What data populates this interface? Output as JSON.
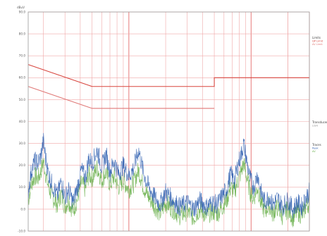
{
  "chart_data": {
    "type": "line",
    "title": "",
    "y_unit_label": "dBuV",
    "y_tick_labels": [
      "90.0",
      "80.0",
      "70.0",
      "60.0",
      "50.0",
      "40.0",
      "30.0",
      "20.0",
      "10.0",
      "0.0",
      "-10.0"
    ],
    "ylim": [
      -10,
      90
    ],
    "x_scale": "log",
    "xlim": [
      0.15,
      30
    ],
    "grid": true,
    "legend_placement": "right",
    "legend_groups": [
      {
        "title": "Limits",
        "items": [
          "QP Limit",
          "AV Limit"
        ],
        "colors": [
          "#d8463f",
          "#e07a78"
        ]
      },
      {
        "title": "Transducer",
        "items": [
          "LISN"
        ],
        "colors": [
          "#999999"
        ]
      },
      {
        "title": "Traces",
        "items": [
          "Peak",
          "AV"
        ],
        "colors": [
          "#2f5fb0",
          "#6ab04c"
        ]
      }
    ],
    "limit_lines": [
      {
        "name": "QP Limit",
        "color": "#d8463f",
        "points": [
          [
            0.15,
            66
          ],
          [
            0.5,
            56
          ],
          [
            5,
            56
          ],
          [
            5,
            60
          ],
          [
            30,
            60
          ]
        ]
      },
      {
        "name": "AV Limit",
        "color": "#e07a78",
        "points": [
          [
            0.15,
            56
          ],
          [
            0.5,
            46
          ],
          [
            5,
            46
          ]
        ]
      }
    ],
    "series": [
      {
        "name": "Peak",
        "color": "#2f5fb0",
        "points": [
          [
            0.15,
            8
          ],
          [
            0.16,
            18
          ],
          [
            0.17,
            22
          ],
          [
            0.18,
            21
          ],
          [
            0.19,
            24
          ],
          [
            0.2,
            31
          ],
          [
            0.21,
            22
          ],
          [
            0.22,
            16
          ],
          [
            0.24,
            10
          ],
          [
            0.26,
            6
          ],
          [
            0.28,
            13
          ],
          [
            0.3,
            5
          ],
          [
            0.32,
            9
          ],
          [
            0.35,
            3
          ],
          [
            0.38,
            10
          ],
          [
            0.41,
            18
          ],
          [
            0.44,
            14
          ],
          [
            0.47,
            23
          ],
          [
            0.5,
            21
          ],
          [
            0.55,
            27
          ],
          [
            0.6,
            19
          ],
          [
            0.65,
            25
          ],
          [
            0.7,
            17
          ],
          [
            0.76,
            22
          ],
          [
            0.82,
            16
          ],
          [
            0.9,
            20
          ],
          [
            1.0,
            15
          ],
          [
            1.1,
            19
          ],
          [
            1.2,
            27
          ],
          [
            1.3,
            18
          ],
          [
            1.4,
            12
          ],
          [
            1.6,
            6
          ],
          [
            1.8,
            2
          ],
          [
            2.0,
            8
          ],
          [
            2.3,
            4
          ],
          [
            2.6,
            1
          ],
          [
            3.0,
            3
          ],
          [
            3.4,
            0
          ],
          [
            3.8,
            4
          ],
          [
            4.3,
            1
          ],
          [
            4.8,
            3
          ],
          [
            5.3,
            2
          ],
          [
            5.8,
            6
          ],
          [
            6.3,
            9
          ],
          [
            6.8,
            16
          ],
          [
            7.3,
            13
          ],
          [
            7.8,
            20
          ],
          [
            8.3,
            25
          ],
          [
            8.7,
            30
          ],
          [
            9.2,
            22
          ],
          [
            9.8,
            14
          ],
          [
            10.5,
            10
          ],
          [
            11.3,
            16
          ],
          [
            12.0,
            8
          ],
          [
            13.0,
            3
          ],
          [
            14.0,
            6
          ],
          [
            15.0,
            2
          ],
          [
            16.5,
            5
          ],
          [
            18.0,
            1
          ],
          [
            20.0,
            4
          ],
          [
            22.0,
            0
          ],
          [
            24.0,
            3
          ],
          [
            26.0,
            1
          ],
          [
            28.0,
            5
          ],
          [
            30.0,
            8
          ]
        ]
      },
      {
        "name": "AV",
        "color": "#6ab04c",
        "points": [
          [
            0.15,
            4
          ],
          [
            0.16,
            12
          ],
          [
            0.17,
            15
          ],
          [
            0.18,
            14
          ],
          [
            0.19,
            17
          ],
          [
            0.2,
            22
          ],
          [
            0.21,
            15
          ],
          [
            0.22,
            10
          ],
          [
            0.24,
            5
          ],
          [
            0.26,
            2
          ],
          [
            0.28,
            7
          ],
          [
            0.3,
            1
          ],
          [
            0.32,
            4
          ],
          [
            0.35,
            -1
          ],
          [
            0.38,
            5
          ],
          [
            0.41,
            12
          ],
          [
            0.44,
            9
          ],
          [
            0.47,
            16
          ],
          [
            0.5,
            14
          ],
          [
            0.55,
            19
          ],
          [
            0.6,
            13
          ],
          [
            0.65,
            17
          ],
          [
            0.7,
            11
          ],
          [
            0.76,
            15
          ],
          [
            0.82,
            10
          ],
          [
            0.9,
            13
          ],
          [
            1.0,
            9
          ],
          [
            1.1,
            12
          ],
          [
            1.2,
            18
          ],
          [
            1.3,
            11
          ],
          [
            1.4,
            7
          ],
          [
            1.6,
            2
          ],
          [
            1.8,
            -2
          ],
          [
            2.0,
            3
          ],
          [
            2.3,
            0
          ],
          [
            2.6,
            -3
          ],
          [
            3.0,
            -1
          ],
          [
            3.4,
            -4
          ],
          [
            3.8,
            0
          ],
          [
            4.3,
            -3
          ],
          [
            4.8,
            -1
          ],
          [
            5.3,
            -2
          ],
          [
            5.8,
            1
          ],
          [
            6.3,
            4
          ],
          [
            6.8,
            10
          ],
          [
            7.3,
            8
          ],
          [
            7.8,
            13
          ],
          [
            8.3,
            17
          ],
          [
            8.7,
            21
          ],
          [
            9.2,
            15
          ],
          [
            9.8,
            8
          ],
          [
            10.5,
            5
          ],
          [
            11.3,
            10
          ],
          [
            12.0,
            3
          ],
          [
            13.0,
            -1
          ],
          [
            14.0,
            2
          ],
          [
            15.0,
            -2
          ],
          [
            16.5,
            1
          ],
          [
            18.0,
            -3
          ],
          [
            20.0,
            0
          ],
          [
            22.0,
            -4
          ],
          [
            24.0,
            -1
          ],
          [
            26.0,
            -3
          ],
          [
            28.0,
            1
          ],
          [
            30.0,
            3
          ]
        ]
      }
    ]
  }
}
